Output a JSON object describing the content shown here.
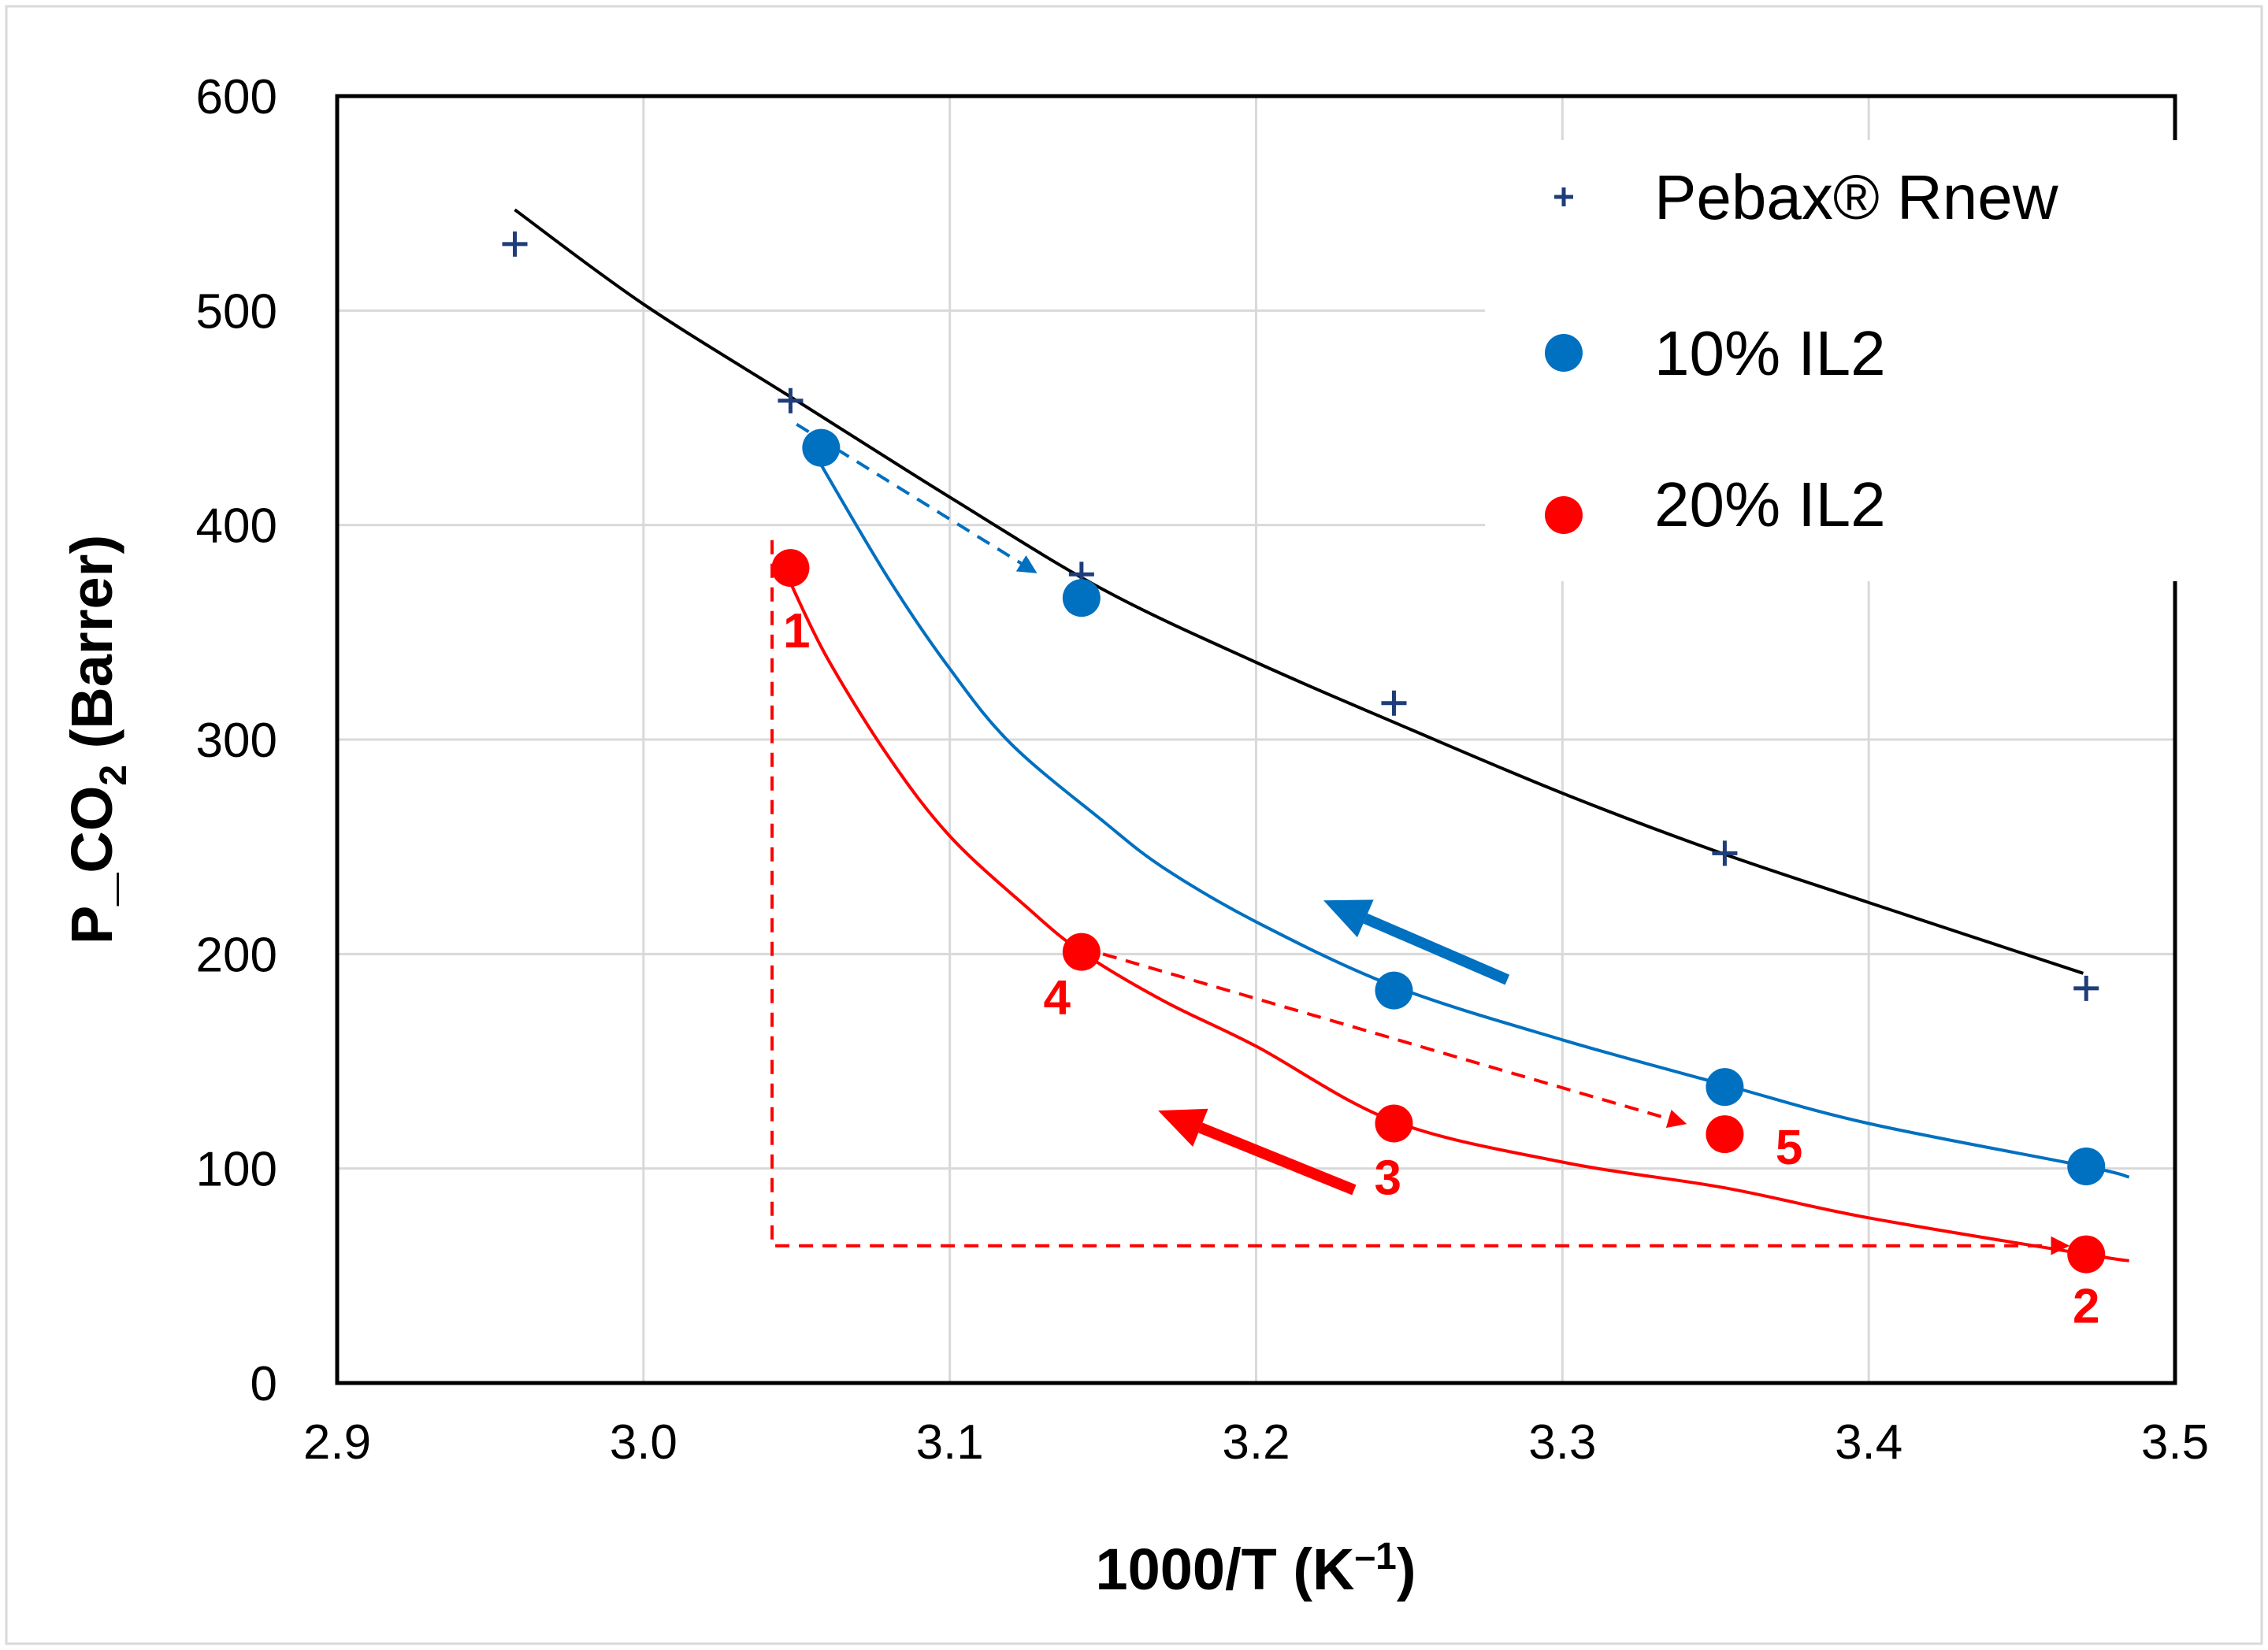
{
  "chart_data": {
    "type": "scatter",
    "title": "",
    "xlabel": "1000/T (K",
    "xlabel_sup": "–1",
    "xlabel_close": ")",
    "ylabel": "P_CO",
    "ylabel_sub": "2",
    "ylabel_rest": " (Barrer)",
    "xlim": [
      2.9,
      3.5
    ],
    "ylim": [
      0,
      600
    ],
    "x_ticks": [
      "2.9",
      "3.0",
      "3.1",
      "3.2",
      "3.3",
      "3.4",
      "3.5"
    ],
    "y_ticks": [
      "0",
      "100",
      "200",
      "300",
      "400",
      "500",
      "600"
    ],
    "grid": true,
    "legend_position": "top-right",
    "series": [
      {
        "name": "Pebax® Rnew",
        "marker": "plus",
        "color": "#1f3d7a",
        "x": [
          2.958,
          3.048,
          3.143,
          3.245,
          3.353,
          3.471
        ],
        "y": [
          531,
          458,
          377,
          317,
          247,
          184
        ]
      },
      {
        "name": "10% IL2",
        "marker": "circle",
        "color": "#0070c0",
        "x": [
          3.058,
          3.143,
          3.245,
          3.353,
          3.471
        ],
        "y": [
          436,
          366,
          183,
          138,
          101
        ]
      },
      {
        "name": "20% IL2",
        "marker": "circle",
        "color": "#ff0000",
        "x": [
          3.048,
          3.143,
          3.245,
          3.353,
          3.471
        ],
        "y": [
          380,
          201,
          121,
          116,
          60
        ]
      }
    ],
    "fit_curves": [
      {
        "series": "Pebax® Rnew",
        "color": "#000000",
        "points": [
          [
            2.958,
            547
          ],
          [
            3.0,
            503
          ],
          [
            3.05,
            458
          ],
          [
            3.1,
            413
          ],
          [
            3.15,
            370
          ],
          [
            3.2,
            336
          ],
          [
            3.25,
            305
          ],
          [
            3.3,
            275
          ],
          [
            3.35,
            248
          ],
          [
            3.4,
            224
          ],
          [
            3.47,
            191
          ]
        ]
      },
      {
        "series": "10% IL2",
        "color": "#0070c0",
        "points": [
          [
            3.058,
            428
          ],
          [
            3.08,
            375
          ],
          [
            3.1,
            333
          ],
          [
            3.12,
            298
          ],
          [
            3.15,
            262
          ],
          [
            3.17,
            240
          ],
          [
            3.2,
            215
          ],
          [
            3.245,
            185
          ],
          [
            3.3,
            160
          ],
          [
            3.353,
            139
          ],
          [
            3.4,
            121
          ],
          [
            3.471,
            101
          ],
          [
            3.485,
            96
          ]
        ]
      },
      {
        "series": "20% IL2",
        "color": "#ff0000",
        "points": [
          [
            3.048,
            373
          ],
          [
            3.06,
            338
          ],
          [
            3.08,
            292
          ],
          [
            3.1,
            255
          ],
          [
            3.125,
            222
          ],
          [
            3.143,
            201
          ],
          [
            3.17,
            178
          ],
          [
            3.2,
            157
          ],
          [
            3.245,
            122
          ],
          [
            3.3,
            103
          ],
          [
            3.353,
            91
          ],
          [
            3.4,
            77
          ],
          [
            3.471,
            60
          ],
          [
            3.485,
            57
          ]
        ]
      }
    ],
    "annotations": [
      {
        "text": "1",
        "x": 3.05,
        "y": 343,
        "color": "#ff0000"
      },
      {
        "text": "2",
        "x": 3.471,
        "y": 28,
        "color": "#ff0000"
      },
      {
        "text": "3",
        "x": 3.243,
        "y": 88,
        "color": "#ff0000"
      },
      {
        "text": "4",
        "x": 3.135,
        "y": 172,
        "color": "#ff0000"
      },
      {
        "text": "5",
        "x": 3.374,
        "y": 102,
        "color": "#ff0000"
      }
    ],
    "dashed_paths": [
      {
        "color": "#0070c0",
        "points": [
          [
            3.05,
            447
          ],
          [
            3.128,
            378
          ]
        ],
        "arrow_end": true
      },
      {
        "color": "#ff0000",
        "points": [
          [
            3.042,
            393
          ],
          [
            3.042,
            64
          ],
          [
            3.465,
            64
          ]
        ],
        "arrow_end": true
      },
      {
        "color": "#ff0000",
        "points": [
          [
            3.15,
            200
          ],
          [
            3.34,
            121
          ]
        ],
        "arrow_end": true
      }
    ],
    "direction_arrows": [
      {
        "color": "#0070c0",
        "from": [
          3.282,
          188
        ],
        "to": [
          3.222,
          225
        ]
      },
      {
        "color": "#ff0000",
        "from": [
          3.232,
          90
        ],
        "to": [
          3.168,
          127
        ]
      }
    ]
  }
}
